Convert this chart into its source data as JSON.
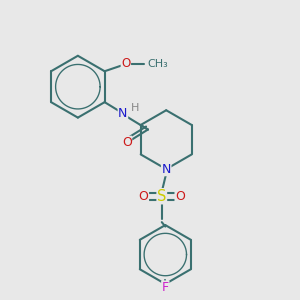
{
  "bg_color": "#e8e8e8",
  "bond_color": "#3a7070",
  "bond_width": 1.5,
  "atom_colors": {
    "N": "#1a1acc",
    "O": "#cc1a1a",
    "S": "#cccc00",
    "F": "#cc22cc",
    "H": "#888888",
    "C": "#3a7070"
  },
  "font_size": 8.5
}
